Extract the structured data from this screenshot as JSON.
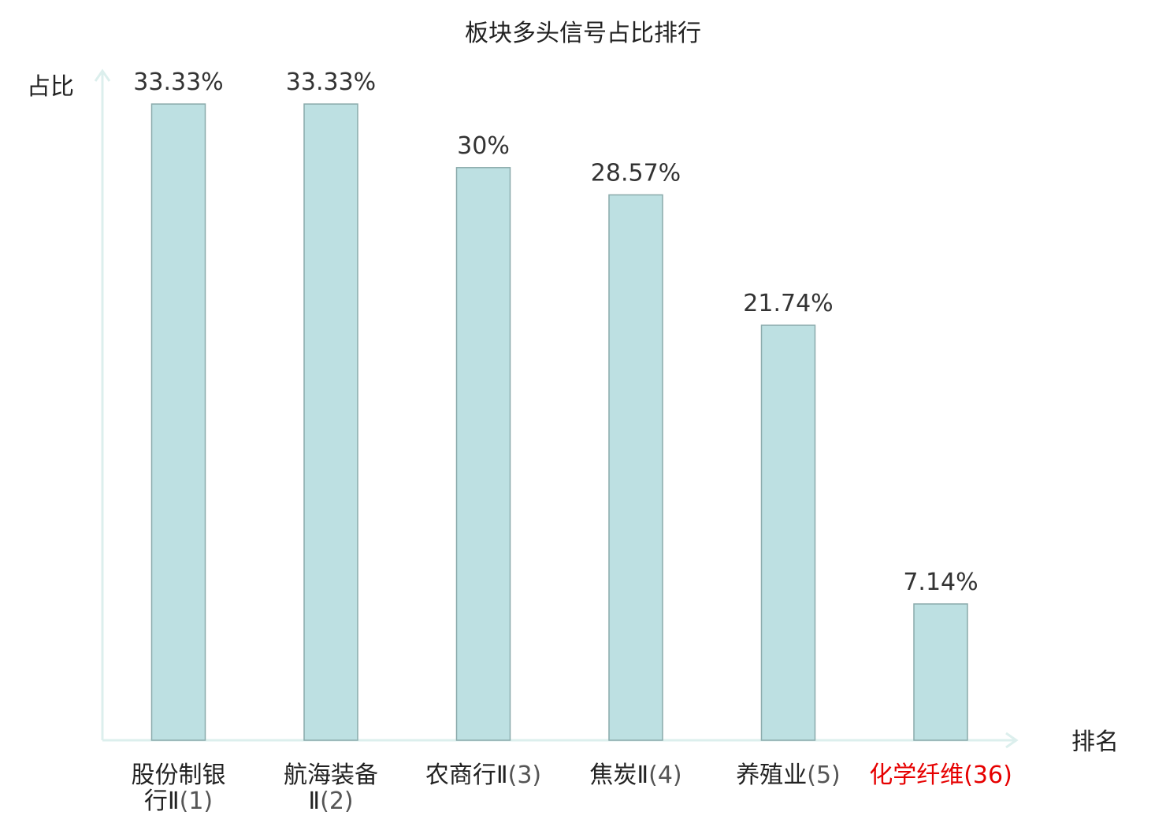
{
  "chart_data": {
    "type": "bar",
    "title": "板块多头信号占比排行",
    "ylabel": "占比",
    "xlabel": "排名",
    "ylim": [
      0,
      35
    ],
    "grid": false,
    "categories": [
      {
        "name_lines": [
          "股份制银",
          "行Ⅱ"
        ],
        "rank": "(1)",
        "highlight": false
      },
      {
        "name_lines": [
          "航海装备",
          "Ⅱ"
        ],
        "rank": "(2)",
        "highlight": false
      },
      {
        "name_lines": [
          "农商行Ⅱ"
        ],
        "rank": "(3)",
        "highlight": false
      },
      {
        "name_lines": [
          "焦炭Ⅱ"
        ],
        "rank": "(4)",
        "highlight": false
      },
      {
        "name_lines": [
          "养殖业"
        ],
        "rank": "(5)",
        "highlight": false
      },
      {
        "name_lines": [
          "化学纤维"
        ],
        "rank": "(36)",
        "highlight": true
      }
    ],
    "values": [
      33.33,
      33.33,
      30,
      28.57,
      21.74,
      7.14
    ],
    "value_labels": [
      "33.33%",
      "33.33%",
      "30%",
      "28.57%",
      "21.74%",
      "7.14%"
    ]
  },
  "colors": {
    "bar_fill": "#bde0e2",
    "bar_stroke": "#8aaaab",
    "axis": "#dcefed",
    "highlight": "#e60000"
  }
}
